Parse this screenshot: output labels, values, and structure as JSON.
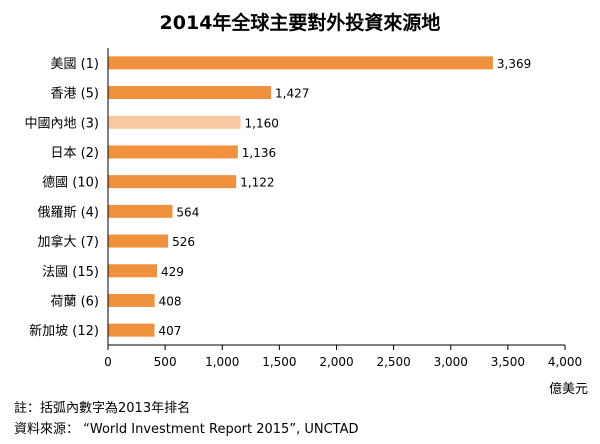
{
  "chart_data": {
    "type": "bar",
    "orientation": "horizontal",
    "title": "2014年全球主要對外投資來源地",
    "categories": [
      "美國 (1)",
      "香港 (5)",
      "中國內地 (3)",
      "日本 (2)",
      "德國 (10)",
      "俄羅斯 (4)",
      "加拿大 (7)",
      "法國 (15)",
      "荷蘭 (6)",
      "新加坡 (12)"
    ],
    "values": [
      3369,
      1427,
      1160,
      1136,
      1122,
      564,
      526,
      429,
      408,
      407
    ],
    "value_labels": [
      "3,369",
      "1,427",
      "1,160",
      "1,136",
      "1,122",
      "564",
      "526",
      "429",
      "408",
      "407"
    ],
    "highlight_index": 2,
    "xlim": [
      0,
      4000
    ],
    "xticks": [
      "0",
      "500",
      "1,000",
      "1,500",
      "2,000",
      "2,500",
      "3,000",
      "3,500",
      "4,000"
    ],
    "xlabel": "億美元",
    "ylabel": "",
    "grid": false,
    "colors": {
      "bar": "#F0913E",
      "highlight": "#F8C9A0",
      "axis": "#000000"
    }
  },
  "notes": {
    "footnote": "註：括弧內數字為2013年排名",
    "source": "資料來源：  “World Investment Report 2015”, UNCTAD"
  }
}
